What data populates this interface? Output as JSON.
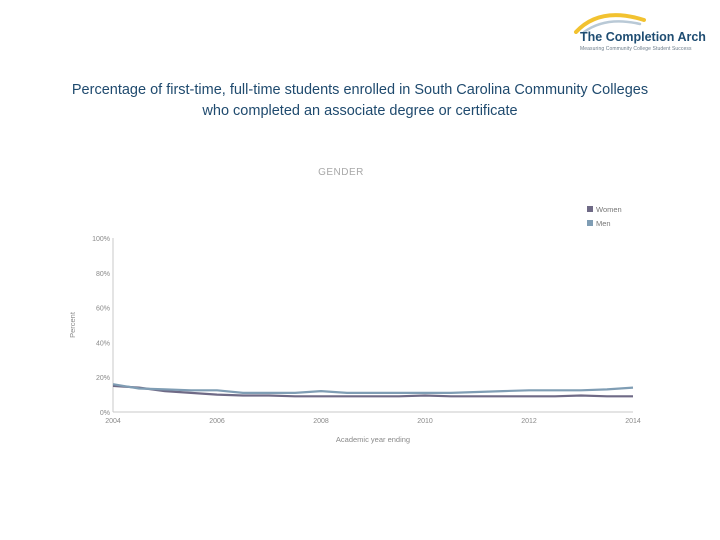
{
  "logo": {
    "name": "The Completion Arch",
    "tagline": "Measuring Community College Student Success",
    "arch_colors": [
      "#f2c230",
      "#b9c9d6"
    ]
  },
  "slide_title": {
    "line1": "Percentage of first-time, full-time students enrolled in South Carolina Community Colleges",
    "line2": "who completed an associate degree or certificate"
  },
  "chart_data": {
    "type": "line",
    "title": "GENDER",
    "xlabel": "Academic year ending",
    "ylabel": "Percent",
    "xlim": [
      2004,
      2014
    ],
    "ylim": [
      0,
      100
    ],
    "x_ticks": [
      2004,
      2006,
      2008,
      2010,
      2012,
      2014
    ],
    "y_ticks": [
      0,
      20,
      40,
      60,
      80,
      100
    ],
    "y_tick_labels": [
      "0%",
      "20%",
      "40%",
      "60%",
      "80%",
      "100%"
    ],
    "x": [
      2004,
      2004.5,
      2005,
      2005.5,
      2006,
      2006.5,
      2007,
      2007.5,
      2008,
      2008.5,
      2009,
      2009.5,
      2010,
      2010.5,
      2011,
      2011.5,
      2012,
      2012.5,
      2013,
      2013.5,
      2014
    ],
    "series": [
      {
        "name": "Women",
        "color": "#6f6a86",
        "values": [
          15,
          14,
          12,
          11,
          10,
          9.5,
          9.5,
          9,
          9,
          9,
          9,
          9,
          9.5,
          9,
          9,
          9,
          9,
          9,
          9.5,
          9,
          9
        ]
      },
      {
        "name": "Men",
        "color": "#7f9db4",
        "values": [
          16,
          13.5,
          13,
          12.5,
          12.5,
          11,
          11,
          11,
          12,
          11,
          11,
          11,
          11,
          11,
          11.5,
          12,
          12.5,
          12.5,
          12.5,
          13,
          14
        ]
      }
    ],
    "grid": false,
    "legend_position": "top-right"
  }
}
